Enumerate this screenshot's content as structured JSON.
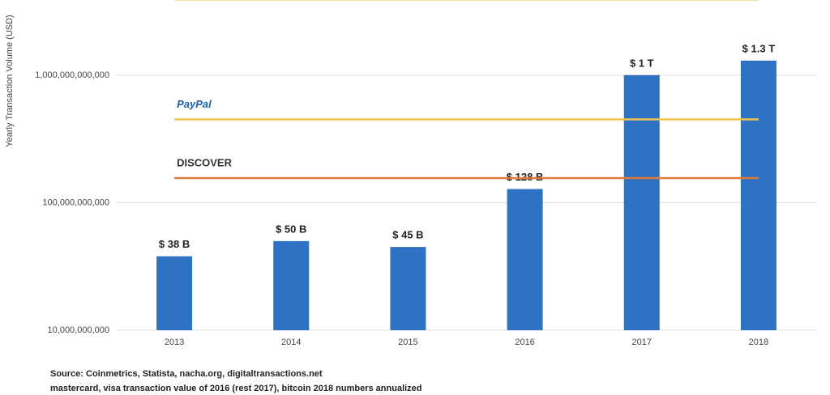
{
  "chart_data": {
    "type": "bar",
    "y_label": "Yearly Transaction Volume (USD)",
    "categories": [
      "2013",
      "2014",
      "2015",
      "2016",
      "2017",
      "2018"
    ],
    "values": [
      38000000000,
      50000000000,
      45000000000,
      128000000000,
      1000000000000,
      1300000000000
    ],
    "value_labels": [
      "$ 38 B",
      "$ 50 B",
      "$ 45 B",
      "$ 128 B",
      "$ 1 T",
      "$ 1.3 T"
    ],
    "color": "#2f72c4",
    "log_scale": true,
    "grid": true,
    "ylim": [
      10000000000,
      4000000000000
    ],
    "yticks": [
      {
        "value": 10000000000,
        "label": "10,000,000,000"
      },
      {
        "value": 100000000000,
        "label": "100,000,000,000"
      },
      {
        "value": 1000000000000,
        "label": "1,000,000,000,000"
      }
    ],
    "reference_lines": [
      {
        "value": 3900000000000,
        "color": "#f3e3a0"
      },
      {
        "name": "PayPal",
        "value": 450000000000,
        "color": "#f2c14e"
      },
      {
        "name": "DISCOVER",
        "value": 156000000000,
        "color": "#e07a3a"
      }
    ],
    "notes": [
      "Source: Coinmetrics, Statista, nacha.org, digitaltransactions.net",
      "mastercard, visa transaction value of 2016 (rest 2017), bitcoin 2018 numbers annualized"
    ]
  }
}
